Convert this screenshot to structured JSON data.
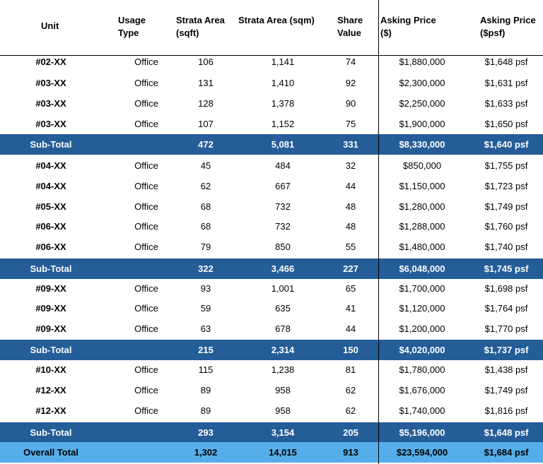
{
  "header": {
    "unit": "Unit",
    "usage_type": [
      "Usage",
      "Type"
    ],
    "strata_area_sqft": [
      "Strata Area",
      "(sqft)"
    ],
    "strata_area_sqm": "Strata Area (sqm)",
    "share_value": [
      "Share",
      "Value"
    ],
    "asking_price": [
      "Asking Price",
      "($)"
    ],
    "asking_price_psf": [
      "Asking Price",
      "($psf)"
    ]
  },
  "rows": [
    {
      "type": "data",
      "unit": "#02-XX",
      "usage": "Office",
      "sqft": "106",
      "sqm": "1,141",
      "share": "74",
      "price": "$1,880,000",
      "psf": "$1,648 psf"
    },
    {
      "type": "data",
      "unit": "#03-XX",
      "usage": "Office",
      "sqft": "131",
      "sqm": "1,410",
      "share": "92",
      "price": "$2,300,000",
      "psf": "$1,631 psf"
    },
    {
      "type": "data",
      "unit": "#03-XX",
      "usage": "Office",
      "sqft": "128",
      "sqm": "1,378",
      "share": "90",
      "price": "$2,250,000",
      "psf": "$1,633 psf"
    },
    {
      "type": "data",
      "unit": "#03-XX",
      "usage": "Office",
      "sqft": "107",
      "sqm": "1,152",
      "share": "75",
      "price": "$1,900,000",
      "psf": "$1,650 psf"
    },
    {
      "type": "sub",
      "unit": "Sub-Total",
      "usage": "",
      "sqft": "472",
      "sqm": "5,081",
      "share": "331",
      "price": "$8,330,000",
      "psf": "$1,640 psf"
    },
    {
      "type": "data",
      "unit": "#04-XX",
      "usage": "Office",
      "sqft": "45",
      "sqm": "484",
      "share": "32",
      "price": "$850,000",
      "psf": "$1,755 psf"
    },
    {
      "type": "data",
      "unit": "#04-XX",
      "usage": "Office",
      "sqft": "62",
      "sqm": "667",
      "share": "44",
      "price": "$1,150,000",
      "psf": "$1,723 psf"
    },
    {
      "type": "data",
      "unit": "#05-XX",
      "usage": "Office",
      "sqft": "68",
      "sqm": "732",
      "share": "48",
      "price": "$1,280,000",
      "psf": "$1,749 psf"
    },
    {
      "type": "data",
      "unit": "#06-XX",
      "usage": "Office",
      "sqft": "68",
      "sqm": "732",
      "share": "48",
      "price": "$1,288,000",
      "psf": "$1,760 psf"
    },
    {
      "type": "data",
      "unit": "#06-XX",
      "usage": "Office",
      "sqft": "79",
      "sqm": "850",
      "share": "55",
      "price": "$1,480,000",
      "psf": "$1,740 psf"
    },
    {
      "type": "sub",
      "unit": "Sub-Total",
      "usage": "",
      "sqft": "322",
      "sqm": "3,466",
      "share": "227",
      "price": "$6,048,000",
      "psf": "$1,745 psf"
    },
    {
      "type": "data",
      "unit": "#09-XX",
      "usage": "Office",
      "sqft": "93",
      "sqm": "1,001",
      "share": "65",
      "price": "$1,700,000",
      "psf": "$1,698 psf"
    },
    {
      "type": "data",
      "unit": "#09-XX",
      "usage": "Office",
      "sqft": "59",
      "sqm": "635",
      "share": "41",
      "price": "$1,120,000",
      "psf": "$1,764 psf"
    },
    {
      "type": "data",
      "unit": "#09-XX",
      "usage": "Office",
      "sqft": "63",
      "sqm": "678",
      "share": "44",
      "price": "$1,200,000",
      "psf": "$1,770 psf"
    },
    {
      "type": "sub",
      "unit": "Sub-Total",
      "usage": "",
      "sqft": "215",
      "sqm": "2,314",
      "share": "150",
      "price": "$4,020,000",
      "psf": "$1,737 psf"
    },
    {
      "type": "data",
      "unit": "#10-XX",
      "usage": "Office",
      "sqft": "115",
      "sqm": "1,238",
      "share": "81",
      "price": "$1,780,000",
      "psf": "$1,438 psf"
    },
    {
      "type": "data",
      "unit": "#12-XX",
      "usage": "Office",
      "sqft": "89",
      "sqm": "958",
      "share": "62",
      "price": "$1,676,000",
      "psf": "$1,749 psf"
    },
    {
      "type": "data",
      "unit": "#12-XX",
      "usage": "Office",
      "sqft": "89",
      "sqm": "958",
      "share": "62",
      "price": "$1,740,000",
      "psf": "$1,816 psf"
    },
    {
      "type": "sub",
      "unit": "Sub-Total",
      "usage": "",
      "sqft": "293",
      "sqm": "3,154",
      "share": "205",
      "price": "$5,196,000",
      "psf": "$1,648 psf"
    },
    {
      "type": "total",
      "unit": "Overall Total",
      "usage": "",
      "sqft": "1,302",
      "sqm": "14,015",
      "share": "913",
      "price": "$23,594,000",
      "psf": "$1,684 psf"
    }
  ],
  "colors": {
    "subtotal_bg": "#245d98",
    "total_bg": "#55aeea",
    "text": "#000000",
    "subtotal_text": "#ffffff"
  }
}
